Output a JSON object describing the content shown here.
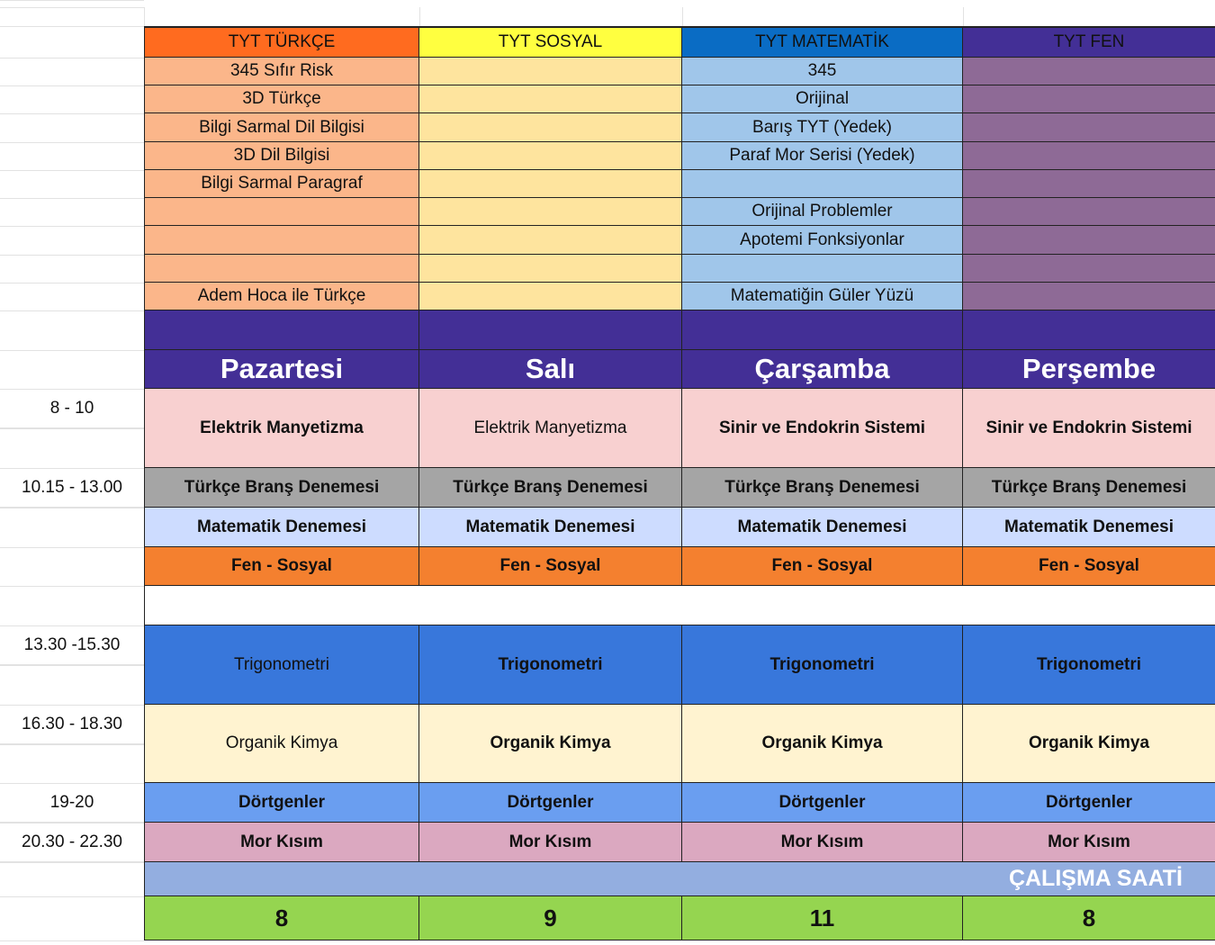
{
  "subjects_header": [
    {
      "label": "TYT TÜRKÇE",
      "color": "#ff6b1f",
      "body_color": "#fbb68a"
    },
    {
      "label": "TYT SOSYAL",
      "color": "#ffff40",
      "body_color": "#fee49e"
    },
    {
      "label": "TYT MATEMATİK",
      "color": "#0a6cc4",
      "body_color": "#a0c6ea"
    },
    {
      "label": "TYT FEN",
      "color": "#432f96",
      "body_color": "#8e6a96"
    }
  ],
  "resources": [
    [
      "345 Sıfır Risk",
      "",
      "345",
      ""
    ],
    [
      "3D Türkçe",
      "",
      "Orijinal",
      ""
    ],
    [
      "Bilgi Sarmal Dil Bilgisi",
      "",
      "Barış TYT (Yedek)",
      ""
    ],
    [
      "3D Dil Bilgisi",
      "",
      "Paraf Mor Serisi (Yedek)",
      ""
    ],
    [
      "Bilgi Sarmal Paragraf",
      "",
      "",
      ""
    ],
    [
      "",
      "",
      "Orijinal Problemler",
      ""
    ],
    [
      "",
      "",
      "Apotemi Fonksiyonlar",
      ""
    ],
    [
      "",
      "",
      "",
      ""
    ],
    [
      "Adem Hoca ile Türkçe",
      "",
      "Matematiğin Güler Yüzü",
      ""
    ]
  ],
  "days": [
    "Pazartesi",
    "Salı",
    "Çarşamba",
    "Perşembe"
  ],
  "day_color": "#432f96",
  "time_labels": [
    "8 - 10",
    "10.15 - 13.00",
    "13.30 -15.30",
    "16.30 - 18.30",
    "19-20",
    "20.30 - 22.30"
  ],
  "schedule": [
    {
      "color": "#f8d0d0",
      "cells": [
        "Elektrik Manyetizma",
        "Elektrik Manyetizma",
        "Sinir ve Endokrin Sistemi",
        "Sinir ve Endokrin Sistemi"
      ],
      "bold": [
        true,
        false,
        true,
        true
      ]
    },
    {
      "color": "#a5a5a5",
      "cells": [
        "Türkçe Branş Denemesi",
        "Türkçe Branş Denemesi",
        "Türkçe Branş Denemesi",
        "Türkçe Branş Denemesi"
      ],
      "bold": [
        true,
        true,
        true,
        true
      ]
    },
    {
      "color": "#cddcff",
      "cells": [
        "Matematik Denemesi",
        "Matematik Denemesi",
        "Matematik Denemesi",
        "Matematik Denemesi"
      ],
      "bold": [
        true,
        true,
        true,
        true
      ]
    },
    {
      "color": "#f4802f",
      "cells": [
        "Fen - Sosyal",
        "Fen - Sosyal",
        "Fen - Sosyal",
        "Fen - Sosyal"
      ],
      "bold": [
        true,
        true,
        true,
        true
      ]
    },
    {
      "color": "#3877db",
      "cells": [
        "Trigonometri",
        "Trigonometri",
        "Trigonometri",
        "Trigonometri"
      ],
      "bold": [
        false,
        true,
        true,
        true
      ]
    },
    {
      "color": "#fff3d0",
      "cells": [
        "Organik Kimya",
        "Organik Kimya",
        "Organik Kimya",
        "Organik Kimya"
      ],
      "bold": [
        false,
        true,
        true,
        true
      ]
    },
    {
      "color": "#6a9ef0",
      "cells": [
        "Dörtgenler",
        "Dörtgenler",
        "Dörtgenler",
        "Dörtgenler"
      ],
      "bold": [
        true,
        true,
        true,
        true
      ]
    },
    {
      "color": "#dba8c0",
      "cells": [
        "Mor Kısım",
        "Mor Kısım",
        "Mor Kısım",
        "Mor Kısım"
      ],
      "bold": [
        true,
        true,
        true,
        true
      ]
    }
  ],
  "study_hours": {
    "label": "ÇALIŞMA SAATİ",
    "color": "#93aee0",
    "values_color": "#95d550",
    "values": [
      "8",
      "9",
      "11",
      "8"
    ]
  }
}
